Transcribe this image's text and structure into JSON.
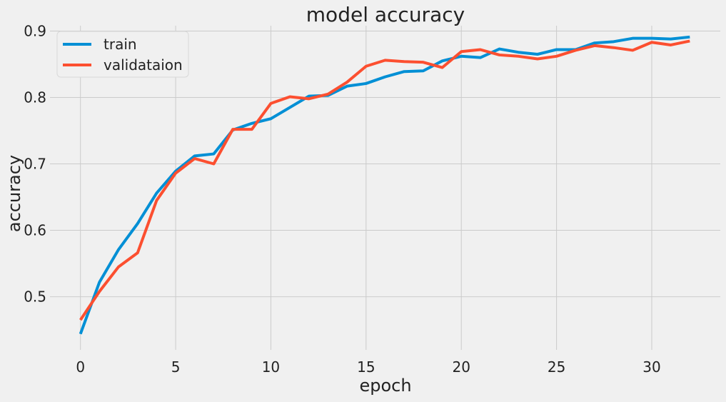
{
  "chart_data": {
    "type": "line",
    "title": "model accuracy",
    "xlabel": "epoch",
    "ylabel": "accuracy",
    "xlim": [
      -1.6,
      33.6
    ],
    "ylim": [
      0.42,
      0.908
    ],
    "xticks": [
      0,
      5,
      10,
      15,
      20,
      25,
      30
    ],
    "yticks": [
      0.5,
      0.6,
      0.7,
      0.8,
      0.9
    ],
    "grid": true,
    "legend_position": "top-left",
    "x": [
      0,
      1,
      2,
      3,
      4,
      5,
      6,
      7,
      8,
      9,
      10,
      11,
      12,
      13,
      14,
      15,
      16,
      17,
      18,
      19,
      20,
      21,
      22,
      23,
      24,
      25,
      26,
      27,
      28,
      29,
      30,
      31,
      32
    ],
    "series": [
      {
        "name": "train",
        "color": "#008fd5",
        "values": [
          0.444,
          0.522,
          0.571,
          0.61,
          0.656,
          0.689,
          0.712,
          0.715,
          0.751,
          0.761,
          0.768,
          0.785,
          0.802,
          0.803,
          0.817,
          0.821,
          0.831,
          0.839,
          0.84,
          0.855,
          0.862,
          0.86,
          0.873,
          0.868,
          0.865,
          0.872,
          0.872,
          0.882,
          0.884,
          0.889,
          0.889,
          0.888,
          0.891
        ]
      },
      {
        "name": "validataion",
        "color": "#fc4f30",
        "values": [
          0.465,
          0.508,
          0.545,
          0.566,
          0.645,
          0.686,
          0.708,
          0.7,
          0.752,
          0.752,
          0.791,
          0.801,
          0.798,
          0.805,
          0.823,
          0.847,
          0.856,
          0.854,
          0.853,
          0.845,
          0.869,
          0.872,
          0.864,
          0.862,
          0.858,
          0.862,
          0.871,
          0.878,
          0.875,
          0.871,
          0.883,
          0.879,
          0.885
        ]
      }
    ]
  }
}
